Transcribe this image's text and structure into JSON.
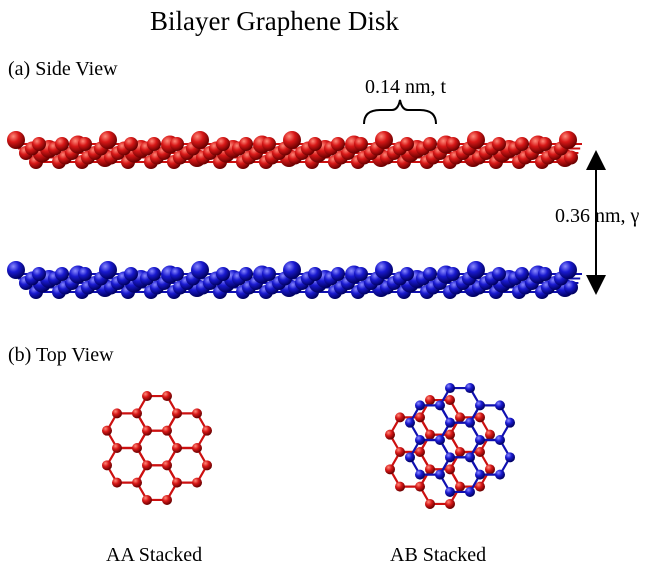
{
  "title": "Bilayer Graphene Disk",
  "panel_a": {
    "label": "(a)  Side View",
    "bond_annotation": "0.14 nm, t",
    "interlayer_annotation": "0.36 nm, γ"
  },
  "panel_b": {
    "label": "(b)  Top View",
    "left_caption": "AA Stacked",
    "right_caption": "AB Stacked"
  },
  "colors": {
    "top_layer": "#cc1010",
    "bottom_layer": "#1010b0"
  }
}
